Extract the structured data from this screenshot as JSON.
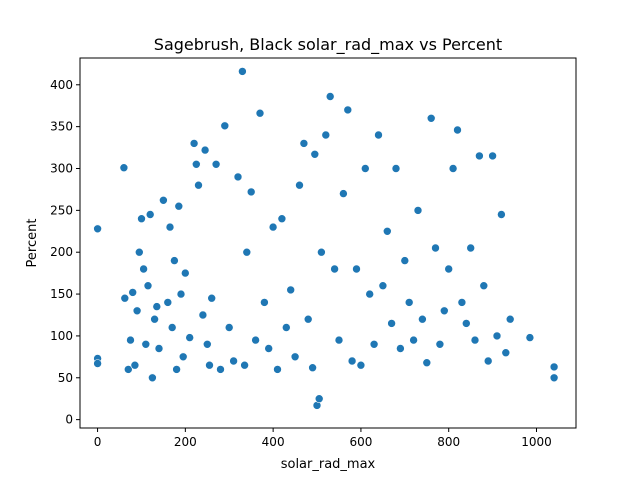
{
  "chart_data": {
    "type": "scatter",
    "title": "Sagebrush, Black solar_rad_max vs Percent",
    "xlabel": "solar_rad_max",
    "ylabel": "Percent",
    "xlim": [
      -40,
      1090
    ],
    "ylim": [
      -10,
      432
    ],
    "xticks": [
      0,
      200,
      400,
      600,
      800,
      1000
    ],
    "yticks": [
      0,
      50,
      100,
      150,
      200,
      250,
      300,
      350,
      400
    ],
    "grid": false,
    "legend": "none",
    "marker_color": "#1f77b4",
    "marker_edge_color": "#ffffff",
    "series": [
      {
        "x": [
          0,
          0,
          0,
          60,
          62,
          70,
          75,
          80,
          85,
          90,
          95,
          100,
          105,
          110,
          115,
          120,
          125,
          130,
          135,
          140,
          150,
          160,
          165,
          170,
          175,
          180,
          185,
          190,
          195,
          200,
          210,
          220,
          225,
          230,
          240,
          245,
          250,
          255,
          260,
          270,
          280,
          290,
          300,
          310,
          320,
          330,
          335,
          340,
          350,
          360,
          370,
          380,
          390,
          400,
          410,
          420,
          430,
          440,
          450,
          460,
          470,
          480,
          490,
          495,
          500,
          505,
          510,
          520,
          530,
          540,
          550,
          560,
          570,
          580,
          590,
          600,
          610,
          620,
          630,
          640,
          650,
          660,
          670,
          680,
          690,
          700,
          710,
          720,
          730,
          740,
          750,
          760,
          770,
          780,
          790,
          800,
          810,
          820,
          830,
          840,
          850,
          860,
          870,
          880,
          890,
          900,
          910,
          920,
          930,
          940,
          985,
          1040,
          1040
        ],
        "y": [
          228,
          73,
          67,
          301,
          145,
          60,
          95,
          152,
          65,
          130,
          200,
          240,
          180,
          90,
          160,
          245,
          50,
          120,
          135,
          85,
          262,
          140,
          230,
          110,
          190,
          60,
          255,
          150,
          75,
          175,
          98,
          330,
          305,
          280,
          125,
          322,
          90,
          65,
          145,
          305,
          60,
          351,
          110,
          70,
          290,
          416,
          65,
          200,
          272,
          95,
          366,
          140,
          85,
          230,
          60,
          240,
          110,
          155,
          75,
          280,
          330,
          120,
          62,
          317,
          17,
          25,
          200,
          340,
          386,
          180,
          95,
          270,
          370,
          70,
          180,
          65,
          300,
          150,
          90,
          340,
          160,
          225,
          115,
          300,
          85,
          190,
          140,
          95,
          250,
          120,
          68,
          360,
          205,
          90,
          130,
          180,
          300,
          346,
          140,
          115,
          205,
          95,
          315,
          160,
          70,
          315,
          100,
          245,
          80,
          120,
          98,
          63,
          50
        ]
      }
    ]
  }
}
